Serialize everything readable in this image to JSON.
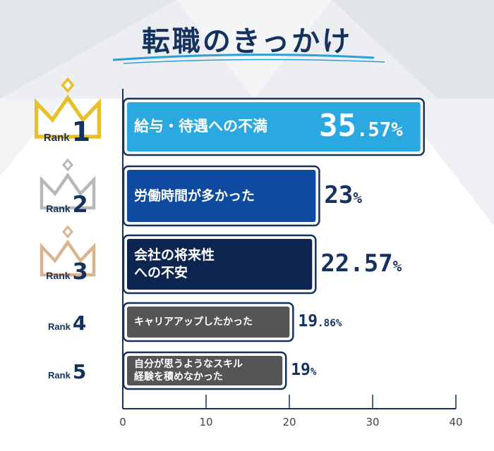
{
  "title": "転職のきっかけ",
  "colors": {
    "navy": "#15325f",
    "rank1_bar": "#29a9e0",
    "rank2_bar": "#0e4aa0",
    "rank3_bar": "#0e2550",
    "rank45_bar": "#555555",
    "gold": "#e6c12b",
    "silver": "#b8b8b8",
    "bronze": "#d9b48e"
  },
  "ranks": [
    {
      "prefix": "Rank",
      "number": "1",
      "icon": "gold-crown-icon"
    },
    {
      "prefix": "Rank",
      "number": "2",
      "icon": "silver-crown-icon"
    },
    {
      "prefix": "Rank",
      "number": "3",
      "icon": "bronze-crown-icon"
    },
    {
      "prefix": "Rank",
      "number": "4"
    },
    {
      "prefix": "Rank",
      "number": "5"
    }
  ],
  "chart_data": {
    "type": "bar",
    "orientation": "horizontal",
    "categories": [
      "給与・待遇への不満",
      "労働時間が多かった",
      "会社の将来性への不安",
      "キャリアアップしたかった",
      "自分が思うようなスキル経験を積めなかった"
    ],
    "display_lines": [
      [
        "給与・待遇への不満"
      ],
      [
        "労働時間が多かった"
      ],
      [
        "会社の将来性",
        "への不安"
      ],
      [
        "キャリアアップしたかった"
      ],
      [
        "自分が思うようなスキル",
        "経験を積めなかった"
      ]
    ],
    "values": [
      35.57,
      23,
      22.57,
      19.86,
      19
    ],
    "value_labels": [
      {
        "int": "35",
        "dec": ".57",
        "unit": "%"
      },
      {
        "int": "23",
        "dec": "",
        "unit": "%"
      },
      {
        "int": "22.57",
        "dec": "",
        "unit": "%"
      },
      {
        "int": "19",
        "dec": ".86",
        "unit": "%"
      },
      {
        "int": "19",
        "dec": "",
        "unit": "%"
      }
    ],
    "xlim": [
      0,
      40
    ],
    "xticks": [
      "0",
      "10",
      "20",
      "30",
      "40"
    ],
    "grid": true
  }
}
